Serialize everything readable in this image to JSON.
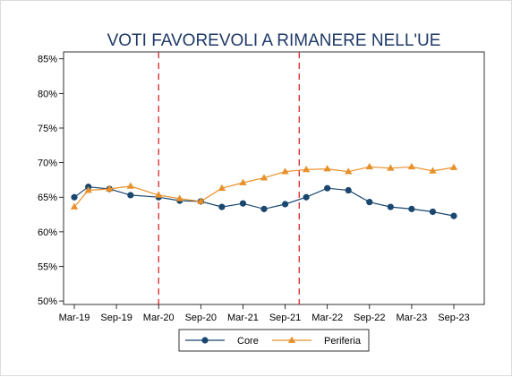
{
  "chart_data": {
    "type": "line",
    "title": "VOTI FAVOREVOLI A RIMANERE NELL'UE",
    "xlabel": "",
    "ylabel": "",
    "x_ticks": [
      "Mar-19",
      "Sep-19",
      "Mar-20",
      "Sep-20",
      "Mar-21",
      "Sep-21",
      "Mar-22",
      "Sep-22",
      "Mar-23",
      "Sep-23"
    ],
    "y_ticks": [
      "50%",
      "55%",
      "60%",
      "65%",
      "70%",
      "75%",
      "80%",
      "85%"
    ],
    "ylim": [
      49.5,
      86
    ],
    "grid": false,
    "legend_position": "bottom",
    "reference_lines": [
      {
        "x": "Mar-20",
        "color": "#d62728",
        "style": "dashed"
      },
      {
        "x": "Nov-21",
        "color": "#d62728",
        "style": "dashed"
      }
    ],
    "series": [
      {
        "name": "Core",
        "color": "#1a476f",
        "marker": "circle",
        "points": [
          {
            "x": "Mar-19",
            "y": 65.0
          },
          {
            "x": "May-19",
            "y": 66.5
          },
          {
            "x": "Aug-19",
            "y": 66.2
          },
          {
            "x": "Nov-19",
            "y": 65.3
          },
          {
            "x": "Mar-20",
            "y": 65.0
          },
          {
            "x": "Jun-20",
            "y": 64.5
          },
          {
            "x": "Sep-20",
            "y": 64.4
          },
          {
            "x": "Dec-20",
            "y": 63.6
          },
          {
            "x": "Mar-21",
            "y": 64.1
          },
          {
            "x": "Jun-21",
            "y": 63.3
          },
          {
            "x": "Sep-21",
            "y": 64.0
          },
          {
            "x": "Dec-21",
            "y": 65.0
          },
          {
            "x": "Mar-22",
            "y": 66.3
          },
          {
            "x": "Jun-22",
            "y": 66.0
          },
          {
            "x": "Sep-22",
            "y": 64.3
          },
          {
            "x": "Dec-22",
            "y": 63.6
          },
          {
            "x": "Mar-23",
            "y": 63.3
          },
          {
            "x": "Jun-23",
            "y": 62.9
          },
          {
            "x": "Sep-23",
            "y": 62.3
          }
        ]
      },
      {
        "name": "Periferia",
        "color": "#e8902a",
        "marker": "triangle",
        "points": [
          {
            "x": "Mar-19",
            "y": 63.6
          },
          {
            "x": "May-19",
            "y": 66.0
          },
          {
            "x": "Aug-19",
            "y": 66.2
          },
          {
            "x": "Nov-19",
            "y": 66.6
          },
          {
            "x": "Mar-20",
            "y": 65.3
          },
          {
            "x": "Jun-20",
            "y": 64.8
          },
          {
            "x": "Sep-20",
            "y": 64.4
          },
          {
            "x": "Dec-20",
            "y": 66.3
          },
          {
            "x": "Mar-21",
            "y": 67.1
          },
          {
            "x": "Jun-21",
            "y": 67.8
          },
          {
            "x": "Sep-21",
            "y": 68.7
          },
          {
            "x": "Dec-21",
            "y": 69.0
          },
          {
            "x": "Mar-22",
            "y": 69.1
          },
          {
            "x": "Jun-22",
            "y": 68.7
          },
          {
            "x": "Sep-22",
            "y": 69.4
          },
          {
            "x": "Dec-22",
            "y": 69.2
          },
          {
            "x": "Mar-23",
            "y": 69.4
          },
          {
            "x": "Jun-23",
            "y": 68.8
          },
          {
            "x": "Sep-23",
            "y": 69.3
          }
        ]
      }
    ]
  }
}
